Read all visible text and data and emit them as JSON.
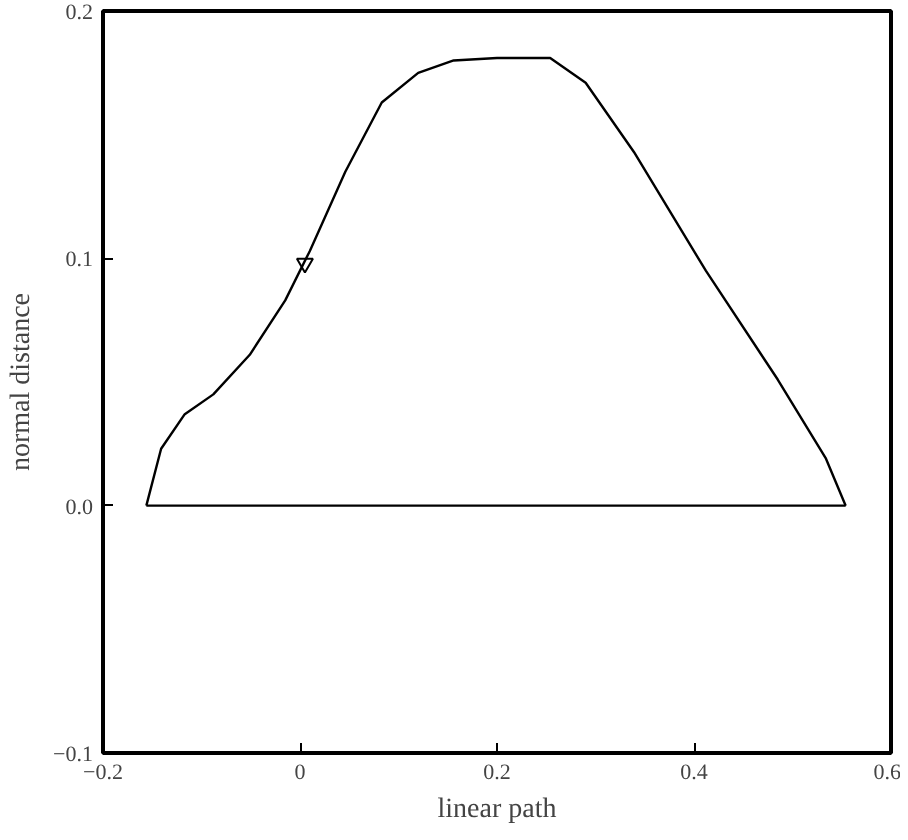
{
  "chart_data": {
    "type": "line",
    "xlabel": "linear path",
    "ylabel": "normal distance",
    "xlim": [
      -0.2,
      0.6
    ],
    "ylim": [
      -0.1,
      0.2
    ],
    "xticks": [
      -0.2,
      {
        "value": 0,
        "label": "0"
      },
      0.2,
      0.4,
      0.6
    ],
    "yticks": [
      -0.1,
      {
        "value": 0,
        "label": "0.0"
      },
      0.1,
      0.2
    ],
    "grid": false,
    "series": [
      {
        "color": "#000000",
        "x": [
          -0.156,
          -0.141,
          -0.117,
          -0.088,
          -0.051,
          -0.015,
          0.01,
          0.046,
          0.083,
          0.12,
          0.156,
          0.2,
          0.254,
          0.29,
          0.339,
          0.412,
          0.485,
          0.534,
          0.554
        ],
        "values": [
          0,
          0.023,
          0.037,
          0.045,
          0.061,
          0.083,
          0.103,
          0.135,
          0.163,
          0.175,
          0.18,
          0.181,
          0.181,
          0.171,
          0.143,
          0.095,
          0.051,
          0.019,
          0
        ]
      },
      {
        "color": "#000000",
        "x": [
          -0.156,
          0.554
        ],
        "values": [
          0,
          0
        ]
      },
      {
        "type": "scatter",
        "marker": "triangle",
        "color": "#000000",
        "x": [
          0.005
        ],
        "values": [
          0.098
        ]
      }
    ]
  }
}
